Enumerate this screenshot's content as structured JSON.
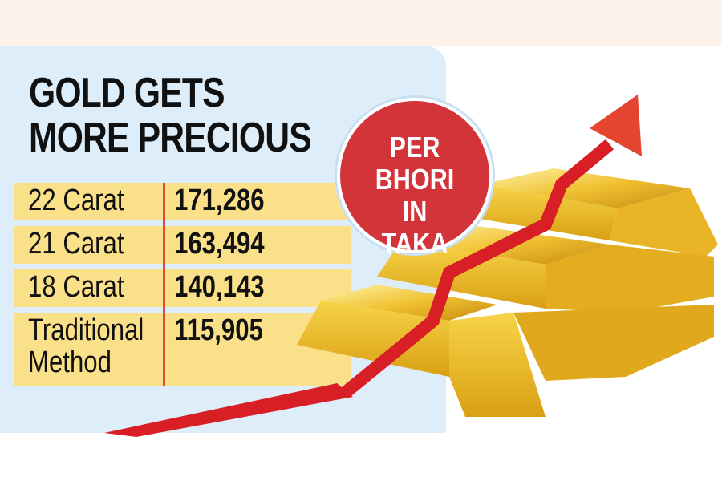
{
  "title": "GOLD GETS MORE PRECIOUS",
  "badge": "PER BHORI IN TAKA",
  "chart_data": {
    "type": "table",
    "title": "GOLD GETS MORE PRECIOUS",
    "unit": "PER BHORI IN TAKA",
    "rows": [
      {
        "label": "22 Carat",
        "value": "171,286"
      },
      {
        "label": "21 Carat",
        "value": "163,494"
      },
      {
        "label": "18 Carat",
        "value": "140,143"
      },
      {
        "label": "Traditional Method",
        "value": "115,905"
      }
    ]
  },
  "colors": {
    "panel": "#ddeefa",
    "row": "#fbe08a",
    "accent": "#d3343a",
    "gold": "#e8b828"
  }
}
